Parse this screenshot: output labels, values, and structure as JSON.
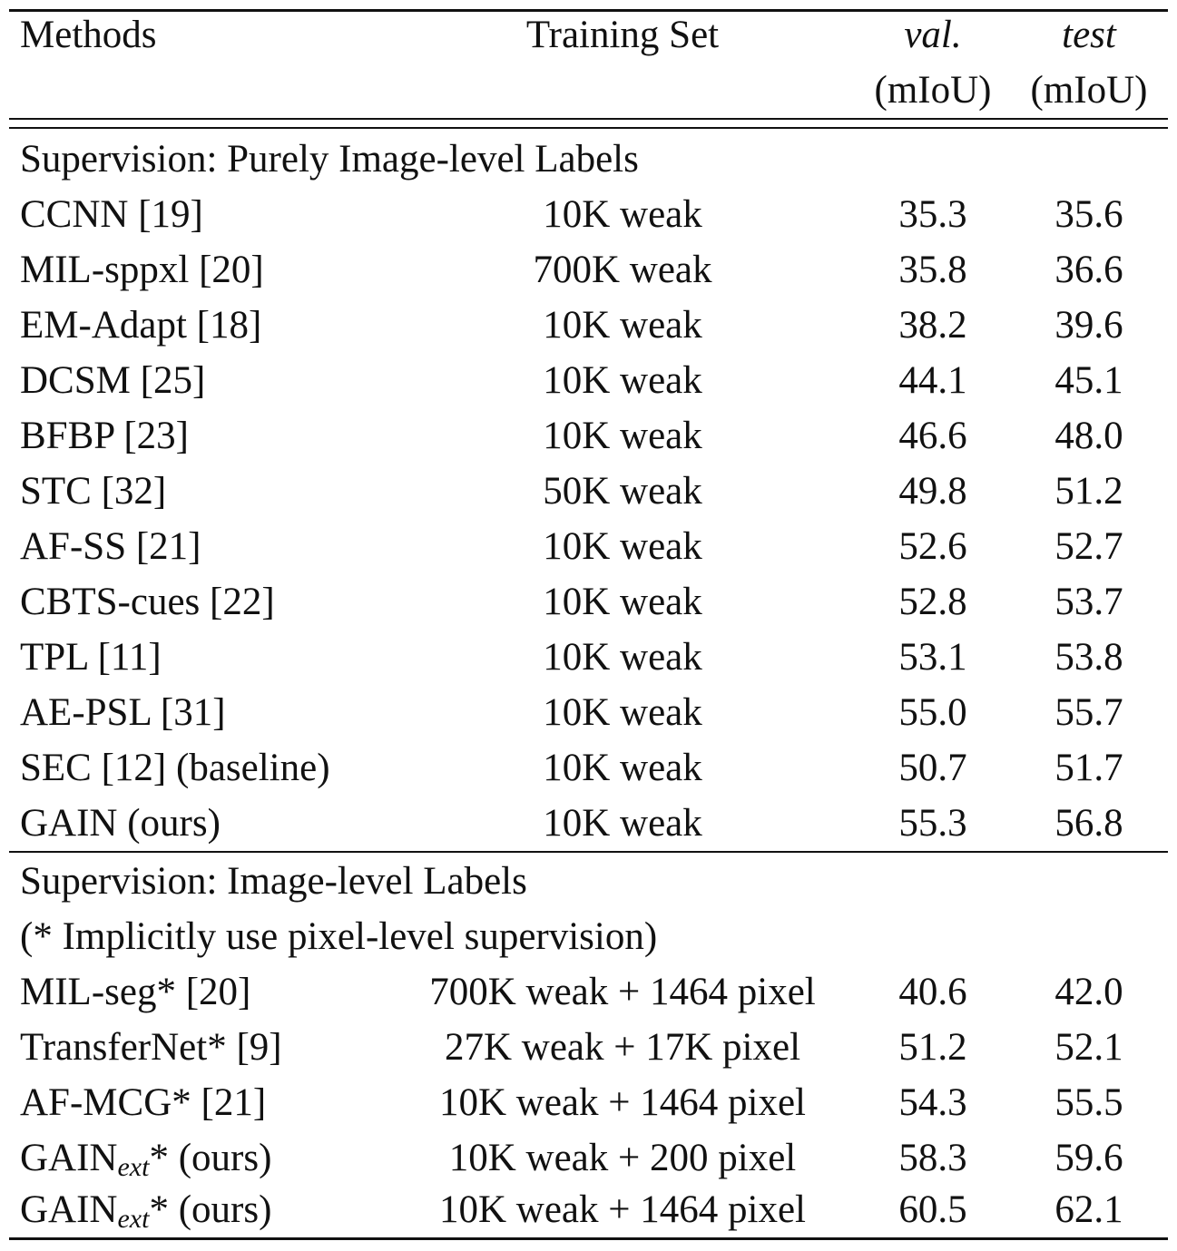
{
  "table": {
    "headers": {
      "method": "Methods",
      "training_set": "Training Set",
      "val_line1": "val.",
      "val_line2": "(mIoU)",
      "test_line1": "test",
      "test_line2": "(mIoU)"
    },
    "section1": {
      "title": "Supervision: Purely Image-level Labels",
      "rows": [
        {
          "method": "CCNN [19]",
          "training_set": "10K weak",
          "val": "35.3",
          "test": "35.6"
        },
        {
          "method": "MIL-sppxl [20]",
          "training_set": "700K weak",
          "val": "35.8",
          "test": "36.6"
        },
        {
          "method": "EM-Adapt [18]",
          "training_set": "10K weak",
          "val": "38.2",
          "test": "39.6"
        },
        {
          "method": "DCSM [25]",
          "training_set": "10K weak",
          "val": "44.1",
          "test": "45.1"
        },
        {
          "method": "BFBP [23]",
          "training_set": "10K weak",
          "val": "46.6",
          "test": "48.0"
        },
        {
          "method": "STC [32]",
          "training_set": "50K weak",
          "val": "49.8",
          "test": "51.2"
        },
        {
          "method": "AF-SS [21]",
          "training_set": "10K weak",
          "val": "52.6",
          "test": "52.7"
        },
        {
          "method": "CBTS-cues [22]",
          "training_set": "10K weak",
          "val": "52.8",
          "test": "53.7"
        },
        {
          "method": "TPL [11]",
          "training_set": "10K weak",
          "val": "53.1",
          "test": "53.8"
        },
        {
          "method": "AE-PSL [31]",
          "training_set": "10K weak",
          "val": "55.0",
          "test": "55.7"
        },
        {
          "method": "SEC [12] (baseline)",
          "training_set": "10K weak",
          "val": "50.7",
          "test": "51.7"
        },
        {
          "method": "GAIN (ours)",
          "training_set": "10K weak",
          "val": "55.3",
          "test": "56.8"
        }
      ]
    },
    "section2": {
      "title": "Supervision: Image-level Labels",
      "subtitle": "(* Implicitly use pixel-level supervision)",
      "rows": [
        {
          "method": "MIL-seg* [20]",
          "training_set": "700K weak + 1464 pixel",
          "val": "40.6",
          "test": "42.0"
        },
        {
          "method": "TransferNet* [9]",
          "training_set": "27K weak + 17K pixel",
          "val": "51.2",
          "test": "52.1"
        },
        {
          "method": "AF-MCG* [21]",
          "training_set": "10K weak + 1464 pixel",
          "val": "54.3",
          "test": "55.5"
        },
        {
          "method_base": "GAIN",
          "method_sub": "ext",
          "method_suffix": "* (ours)",
          "training_set": "10K weak + 200 pixel",
          "val": "58.3",
          "test": "59.6"
        },
        {
          "method_base": "GAIN",
          "method_sub": "ext",
          "method_suffix": "* (ours)",
          "training_set": "10K weak + 1464 pixel",
          "val": "60.5",
          "test": "62.1"
        }
      ]
    }
  }
}
